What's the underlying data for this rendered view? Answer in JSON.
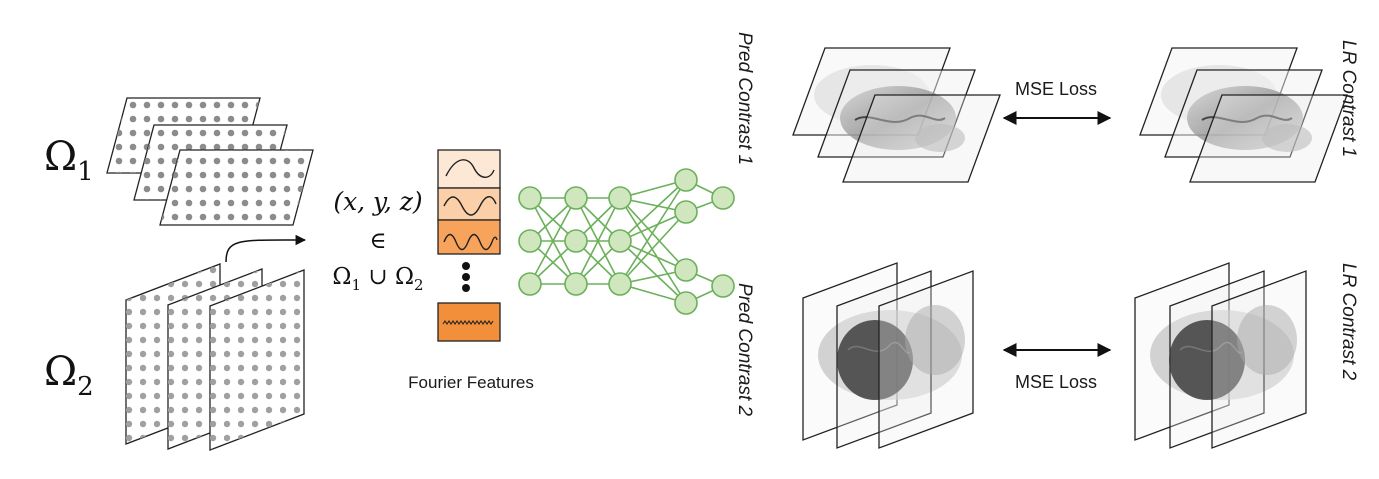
{
  "domains": {
    "omega1": {
      "symbol": "Ω",
      "sub": "1"
    },
    "omega2": {
      "symbol": "Ω",
      "sub": "2"
    }
  },
  "coords": {
    "line1": "(x, y, z)",
    "line2": "∈",
    "line3_pre": "Ω",
    "line3_s1": "1",
    "line3_mid": " ∪ Ω",
    "line3_s2": "2"
  },
  "fourier": {
    "label": "Fourier Features",
    "colors": [
      "#fde8d6",
      "#fbcfa8",
      "#f7a35c",
      "#f28f3b"
    ]
  },
  "network": {
    "node_fill": "#cfe6bf",
    "stroke": "#6bb05a",
    "layers": [
      3,
      3,
      3,
      4,
      2
    ]
  },
  "outputs": {
    "pred1": "Pred Contrast 1",
    "pred2": "Pred Contrast 2",
    "lr1": "LR Contrast 1",
    "lr2": "LR Contrast 2"
  },
  "losses": {
    "top": "MSE Loss",
    "bottom": "MSE Loss"
  }
}
